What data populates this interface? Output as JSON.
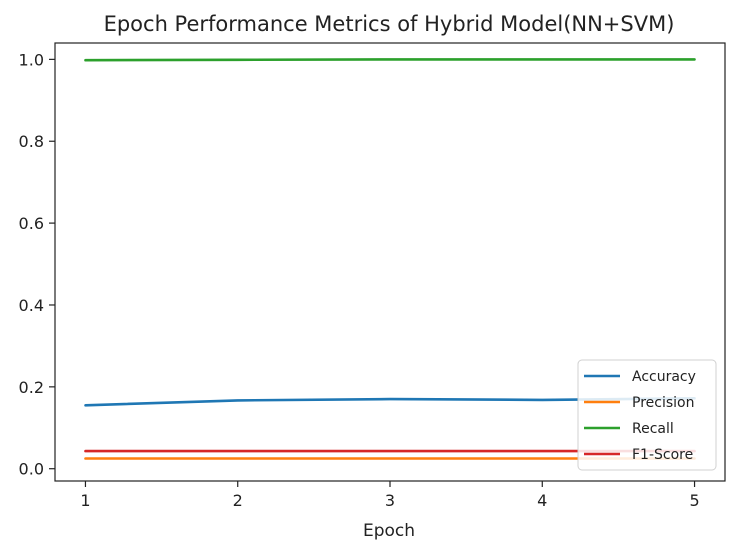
{
  "chart_data": {
    "type": "line",
    "title": "Epoch Performance Metrics of Hybrid Model(NN+SVM)",
    "xlabel": "Epoch",
    "ylabel": "",
    "x": [
      1,
      2,
      3,
      4,
      5
    ],
    "xticks": [
      "1",
      "2",
      "3",
      "4",
      "5"
    ],
    "yticks": [
      "0.0",
      "0.2",
      "0.4",
      "0.6",
      "0.8",
      "1.0"
    ],
    "xlim": [
      0.8,
      5.2
    ],
    "ylim": [
      -0.03,
      1.04
    ],
    "grid": false,
    "legend_position": "lower right",
    "series": [
      {
        "name": "Accuracy",
        "color": "#1f77b4",
        "values": [
          0.155,
          0.167,
          0.17,
          0.168,
          0.172
        ]
      },
      {
        "name": "Precision",
        "color": "#ff7f0e",
        "values": [
          0.025,
          0.025,
          0.025,
          0.025,
          0.025
        ]
      },
      {
        "name": "Recall",
        "color": "#2ca02c",
        "values": [
          0.998,
          0.999,
          1.0,
          1.0,
          1.0
        ]
      },
      {
        "name": "F1-Score",
        "color": "#d62728",
        "values": [
          0.043,
          0.043,
          0.043,
          0.043,
          0.043
        ]
      }
    ]
  }
}
